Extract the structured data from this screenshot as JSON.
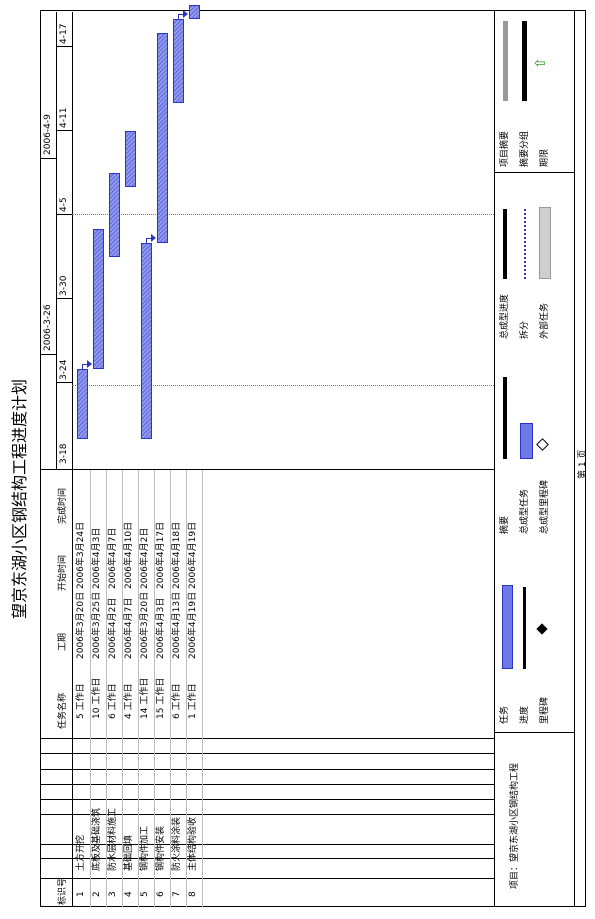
{
  "title": "望京东湖小区钢结构工程进度计划",
  "table": {
    "headers": {
      "id": "标识号",
      "name": "任务名称",
      "duration": "工期",
      "start": "开始时间",
      "finish": "完成时间"
    },
    "rows": [
      {
        "id": "1",
        "name": "土方开挖",
        "duration": "5 工作日",
        "start": "2006年3月20日",
        "finish": "2006年3月24日"
      },
      {
        "id": "2",
        "name": "底板及基础浇筑",
        "duration": "10 工作日",
        "start": "2006年3月25日",
        "finish": "2006年4月3日"
      },
      {
        "id": "3",
        "name": "防水层材料施工",
        "duration": "6 工作日",
        "start": "2006年4月2日",
        "finish": "2006年4月7日"
      },
      {
        "id": "4",
        "name": "基础回填",
        "duration": "4 工作日",
        "start": "2006年4月7日",
        "finish": "2006年4月10日"
      },
      {
        "id": "5",
        "name": "钢构件加工",
        "duration": "14 工作日",
        "start": "2006年3月20日",
        "finish": "2006年4月2日"
      },
      {
        "id": "6",
        "name": "钢构件安装",
        "duration": "15 工作日",
        "start": "2006年4月3日",
        "finish": "2006年4月17日"
      },
      {
        "id": "7",
        "name": "防火涂料涂装",
        "duration": "6 工作日",
        "start": "2006年4月13日",
        "finish": "2006年4月18日"
      },
      {
        "id": "8",
        "name": "主体结构验收",
        "duration": "1 工作日",
        "start": "2006年4月19日",
        "finish": "2006年4月19日"
      }
    ]
  },
  "timescale": {
    "weeks": [
      "2006-3-26",
      "2006-4-9"
    ],
    "days": [
      "3-18",
      "3-24",
      "3-30",
      "4-5",
      "4-11",
      "4-17"
    ]
  },
  "gantt": {
    "origin_date": "2006-03-18",
    "tasks": [
      {
        "start": "2006-03-20",
        "finish": "2006-03-24"
      },
      {
        "start": "2006-03-25",
        "finish": "2006-04-03"
      },
      {
        "start": "2006-04-02",
        "finish": "2006-04-07"
      },
      {
        "start": "2006-04-07",
        "finish": "2006-04-10"
      },
      {
        "start": "2006-03-20",
        "finish": "2006-04-02"
      },
      {
        "start": "2006-04-03",
        "finish": "2006-04-17"
      },
      {
        "start": "2006-04-13",
        "finish": "2006-04-18"
      },
      {
        "start": "2006-04-19",
        "finish": "2006-04-19"
      }
    ],
    "links": [
      [
        0,
        1
      ],
      [
        4,
        5
      ],
      [
        6,
        7
      ]
    ]
  },
  "footer": {
    "project": "项目：望京东湖小区钢结构工程",
    "legend": {
      "task": "任务",
      "progress": "进度",
      "milestone": "里程碑",
      "summary": "摘要",
      "rolled_task": "总成型任务",
      "rolled_milestone": "总成型里程碑",
      "rolled_progress": "总成型进度",
      "split": "拆分",
      "external_task": "外部任务",
      "project_summary": "项目摘要",
      "group_by_summary": "摘要分组",
      "deadline": "期限"
    },
    "page": "第 1 页"
  },
  "colors": {
    "bar": "#6f79e6",
    "bar_border": "#2a35c8",
    "deadline_arrow": "#2e9c2e"
  }
}
